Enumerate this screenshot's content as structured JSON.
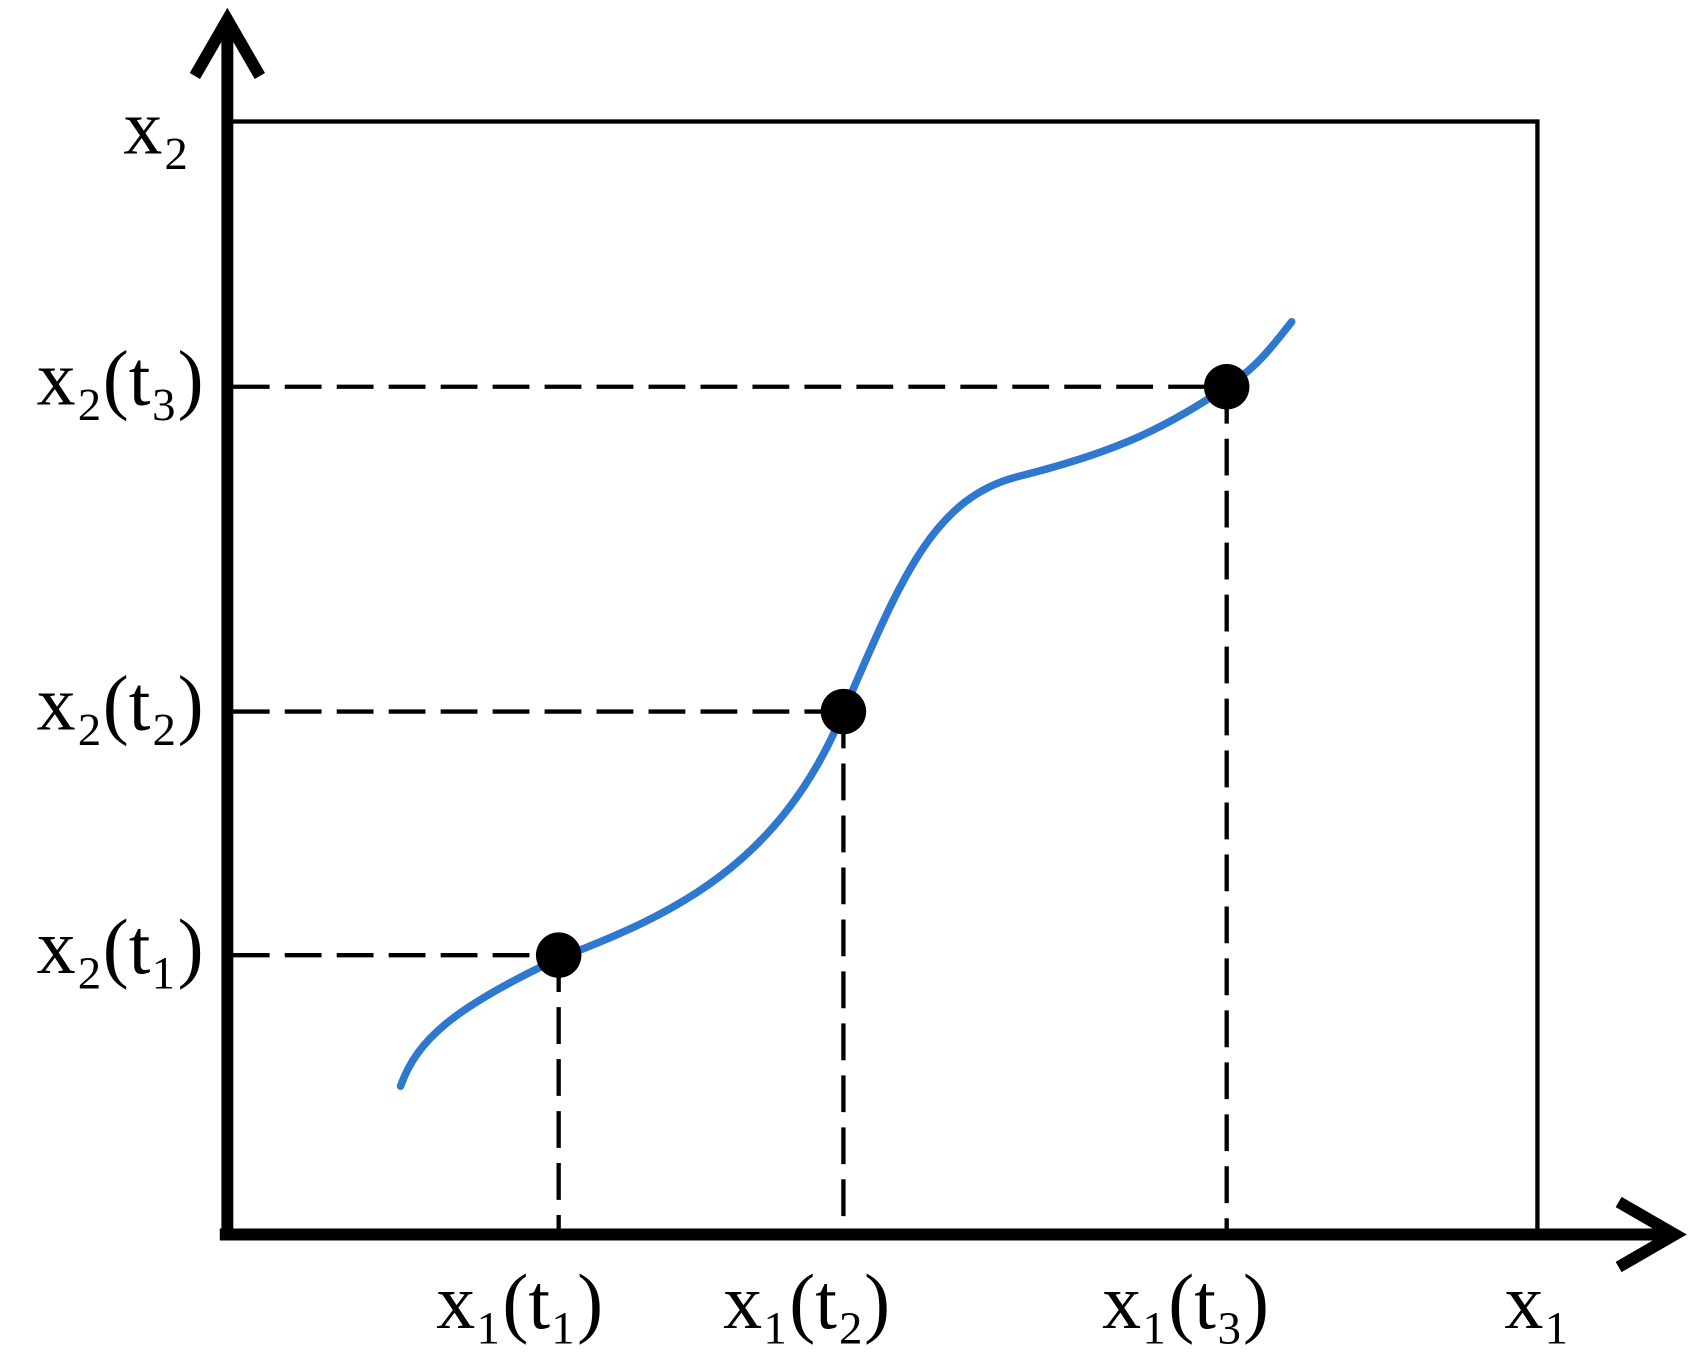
{
  "axes": {
    "x_label": "x₁",
    "y_label": "x₂"
  },
  "points": [
    {
      "x_label": "x₁(t₁)",
      "y_label": "x₂(t₁)"
    },
    {
      "x_label": "x₁(t₂)",
      "y_label": "x₂(t₂)"
    },
    {
      "x_label": "x₁(t₃)",
      "y_label": "x₂(t₃)"
    }
  ]
}
